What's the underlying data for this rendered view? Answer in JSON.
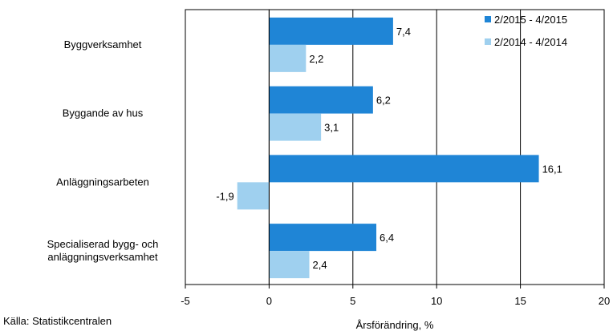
{
  "chart_data": {
    "type": "bar",
    "orientation": "horizontal",
    "categories": [
      "Byggverksamhet",
      "Byggande av hus",
      "Anläggningsarbeten",
      "Specialiserad bygg- och\nanläggningsverksamhet"
    ],
    "series": [
      {
        "name": "2/2015 - 4/2015",
        "color": "#1f85d6",
        "values": [
          7.4,
          6.2,
          16.1,
          6.4
        ],
        "labels": [
          "7,4",
          "6,2",
          "16,1",
          "6,4"
        ]
      },
      {
        "name": "2/2014 - 4/2014",
        "color": "#9fd0ef",
        "values": [
          2.2,
          3.1,
          -1.9,
          2.4
        ],
        "labels": [
          "2,2",
          "3,1",
          "-1,9",
          "2,4"
        ]
      }
    ],
    "xlim": [
      -5,
      20
    ],
    "xticks": [
      -5,
      0,
      5,
      10,
      15,
      20
    ],
    "xtick_labels": [
      "-5",
      "0",
      "5",
      "10",
      "15",
      "20"
    ],
    "xlabel": "Årsförändring, %",
    "grid": "vertical",
    "legend": "top-right"
  },
  "source": "Källa: Statistikcentralen"
}
